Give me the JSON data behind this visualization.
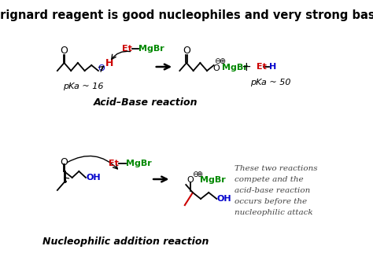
{
  "title": "Grignard reagent is good nucleophiles and very strong base",
  "title_fontsize": 10.5,
  "background_color": "#ffffff",
  "acid_base_label": "Acid–Base reaction",
  "nucl_add_label": "Nucleophilic addition reaction",
  "pka16": "pKa ~ 16",
  "pka50": "pKa ~ 50",
  "side_text": [
    "These two reactions",
    "compete and the",
    "acid-base reaction",
    "occurs before the",
    "nucleophilic attack"
  ],
  "color_black": "#000000",
  "color_red": "#cc0000",
  "color_green": "#008800",
  "color_blue": "#0000cc",
  "color_gray": "#444444",
  "figw": 4.74,
  "figh": 3.27,
  "dpi": 100
}
